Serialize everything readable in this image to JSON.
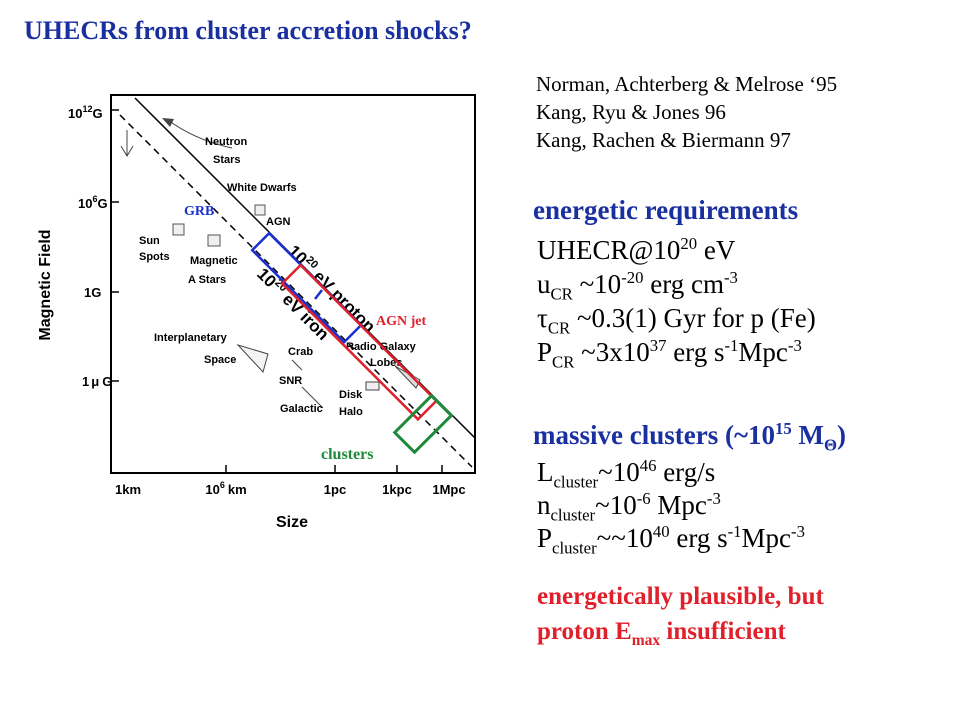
{
  "slide": {
    "title": "UHECRs from cluster accretion shocks?",
    "references": [
      "Norman, Achterberg & Melrose ‘95",
      "Kang, Ryu & Jones 96",
      "Kang, Rachen & Biermann 97"
    ],
    "energetic_heading": "energetic requirements",
    "req": {
      "l1a": "UHECR@10",
      "l1sup": "20",
      "l1b": " eV",
      "l2a": "u",
      "l2sub": "CR",
      "l2b": " ~10",
      "l2sup": "-20",
      "l2c": " erg cm",
      "l2sup2": "-3",
      "l3a": "τ",
      "l3sub": "CR",
      "l3b": " ~0.3(1) Gyr for p (Fe)",
      "l4a": "P",
      "l4sub": "CR",
      "l4b": " ~3x10",
      "l4sup": "37",
      "l4c": " erg s",
      "l4sup2": "-1",
      "l4d": "Mpc",
      "l4sup3": "-3"
    },
    "clusters_heading": {
      "a": "massive clusters (~10",
      "sup": "15",
      "b": " M",
      "sub": "Θ",
      "c": ")"
    },
    "cl": {
      "l1a": "L",
      "l1sub": "cluster",
      "l1b": "~10",
      "l1sup": "46",
      "l1c": " erg/s",
      "l2a": "n",
      "l2sub": "cluster",
      "l2b": "~10",
      "l2sup": "-6",
      "l2c": " Mpc",
      "l2sup2": "-3",
      "l3a": "P",
      "l3sub": "cluster",
      "l3b": "~~10",
      "l3sup": "40",
      "l3c": " erg s",
      "l3sup2": "-1",
      "l3d": "Mpc",
      "l3sup3": "-3"
    },
    "conclusion": {
      "l1": "energetically plausible, but",
      "l2a": "proton E",
      "l2sub": "max",
      "l2b": " insufficient"
    }
  },
  "figure": {
    "y_axis_label": "Magnetic Field",
    "x_axis_label": "Size",
    "y_ticks": [
      "10",
      "12",
      "G",
      "10",
      "6",
      "G",
      "1G",
      "1",
      "μ",
      "G"
    ],
    "x_ticks": [
      "1km",
      "10",
      "6",
      "km",
      "1pc",
      "1kpc",
      "1Mpc"
    ],
    "objects": [
      "Neutron",
      "Stars",
      "White Dwarfs",
      "AGN",
      "Sun",
      "Spots",
      "Magnetic",
      "A Stars",
      "Interplanetary",
      "Space",
      "Crab",
      "SNR",
      "Radio Galaxy",
      "Lobes",
      "Disk",
      "Halo",
      "Galactic"
    ],
    "lines": {
      "proton_a": "10",
      "proton_sup": "20",
      "proton_b": " eV proton",
      "iron_a": "10",
      "iron_sup": "20",
      "iron_b": " eV iron"
    },
    "boxes": {
      "grb": "GRB",
      "agn_jet": "AGN  jet",
      "clusters": "clusters"
    },
    "colors": {
      "blue": "#1a2fd0",
      "red": "#e0202a",
      "green": "#1e8a3a"
    }
  }
}
